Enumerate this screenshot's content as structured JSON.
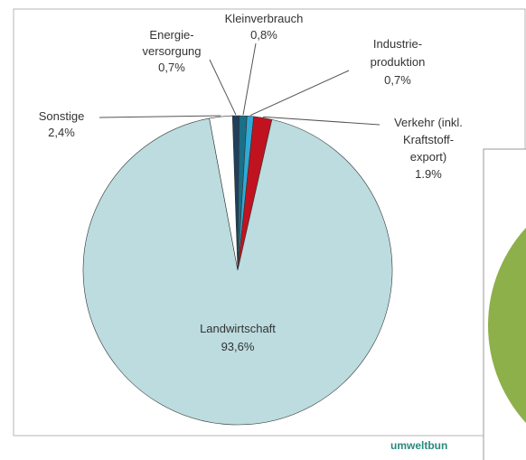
{
  "chart_data": {
    "type": "pie",
    "categories": [
      [
        "Energie-",
        "versorgung"
      ],
      [
        "Kleinverbrauch"
      ],
      [
        "Industrie-",
        "produktion"
      ],
      [
        "Verkehr (inkl.",
        "Kraftstoff-",
        "export)"
      ],
      [
        "Landwirtschaft"
      ],
      [
        "Sonstige"
      ]
    ],
    "values": [
      0.7,
      0.8,
      0.7,
      1.9,
      93.6,
      2.4
    ],
    "value_labels": [
      "0,7%",
      "0,8%",
      "0,7%",
      "1.9%",
      "93,6%",
      "2,4%"
    ],
    "colors": [
      "#1f3f5e",
      "#1b6f86",
      "#2fa9d6",
      "#c0131f",
      "#bcdcdf",
      "#ffffff"
    ]
  },
  "footer": "umweltbun"
}
